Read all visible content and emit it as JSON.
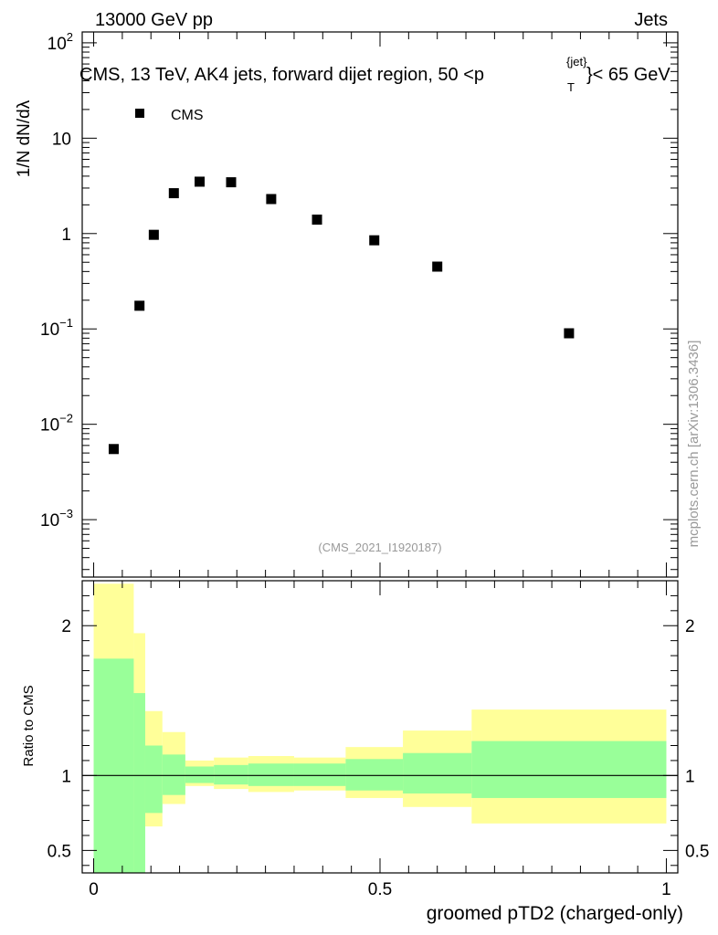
{
  "header": {
    "left": "13000 GeV pp",
    "right": "Jets",
    "plot_title": "CMS, 13 TeV, AK4 jets, forward dijet region, 50 <p",
    "plot_title_sup": "{jet}",
    "plot_title_sub": "T",
    "plot_title_end": "}< 65 GeV",
    "analysis_id": "(CMS_2021_I1920187)",
    "side_label": "mcplots.cern.ch [arXiv:1306.3436]"
  },
  "chart_data": [
    {
      "type": "scatter",
      "name": "main",
      "ylabel": "1/N dN/dλ",
      "yscale": "log",
      "ylim": [
        0.00025,
        130
      ],
      "xlim": [
        -0.02,
        1.02
      ],
      "legend": {
        "entry": "CMS",
        "placement": "top-left"
      },
      "series": [
        {
          "name": "CMS",
          "x": [
            0.035,
            0.08,
            0.105,
            0.14,
            0.185,
            0.24,
            0.31,
            0.39,
            0.49,
            0.6,
            0.83
          ],
          "y": [
            0.0055,
            0.175,
            0.97,
            2.65,
            3.5,
            3.45,
            2.3,
            1.4,
            0.85,
            0.45,
            0.09
          ]
        }
      ],
      "yticks": [
        {
          "base": "10",
          "exp": "2"
        },
        {
          "base": "10",
          "exp": ""
        },
        {
          "base": "1",
          "exp": ""
        },
        {
          "base": "10",
          "exp": "−1"
        },
        {
          "base": "10",
          "exp": "−2"
        },
        {
          "base": "10",
          "exp": "−3"
        }
      ]
    },
    {
      "type": "area",
      "name": "ratio",
      "ylabel": "Ratio to CMS",
      "xlabel": "groomed pTD2 (charged-only)",
      "ylim": [
        0.35,
        2.3
      ],
      "xlim": [
        -0.02,
        1.02
      ],
      "xticks": [
        "0",
        "0.5",
        "1"
      ],
      "yticks": [
        "2",
        "1",
        "0.5"
      ],
      "bins": [
        {
          "lo": 0.0,
          "hi": 0.07,
          "g": [
            0.0,
            1.78
          ],
          "y": [
            0.0,
            2.28
          ]
        },
        {
          "lo": 0.07,
          "hi": 0.09,
          "g": [
            0.0,
            1.55
          ],
          "y": [
            0.54,
            1.95
          ]
        },
        {
          "lo": 0.09,
          "hi": 0.12,
          "g": [
            0.75,
            1.2
          ],
          "y": [
            0.66,
            1.43
          ]
        },
        {
          "lo": 0.12,
          "hi": 0.16,
          "g": [
            0.87,
            1.14
          ],
          "y": [
            0.81,
            1.29
          ]
        },
        {
          "lo": 0.16,
          "hi": 0.21,
          "g": [
            0.95,
            1.06
          ],
          "y": [
            0.93,
            1.1
          ]
        },
        {
          "lo": 0.21,
          "hi": 0.27,
          "g": [
            0.94,
            1.07
          ],
          "y": [
            0.91,
            1.12
          ]
        },
        {
          "lo": 0.27,
          "hi": 0.35,
          "g": [
            0.93,
            1.08
          ],
          "y": [
            0.89,
            1.13
          ]
        },
        {
          "lo": 0.35,
          "hi": 0.44,
          "g": [
            0.93,
            1.08
          ],
          "y": [
            0.9,
            1.12
          ]
        },
        {
          "lo": 0.44,
          "hi": 0.54,
          "g": [
            0.9,
            1.11
          ],
          "y": [
            0.85,
            1.19
          ]
        },
        {
          "lo": 0.54,
          "hi": 0.66,
          "g": [
            0.88,
            1.15
          ],
          "y": [
            0.79,
            1.3
          ]
        },
        {
          "lo": 0.66,
          "hi": 1.0,
          "g": [
            0.85,
            1.23
          ],
          "y": [
            0.68,
            1.44
          ]
        }
      ],
      "colors": {
        "green": "#99ff99",
        "yellow": "#ffff99"
      }
    }
  ]
}
